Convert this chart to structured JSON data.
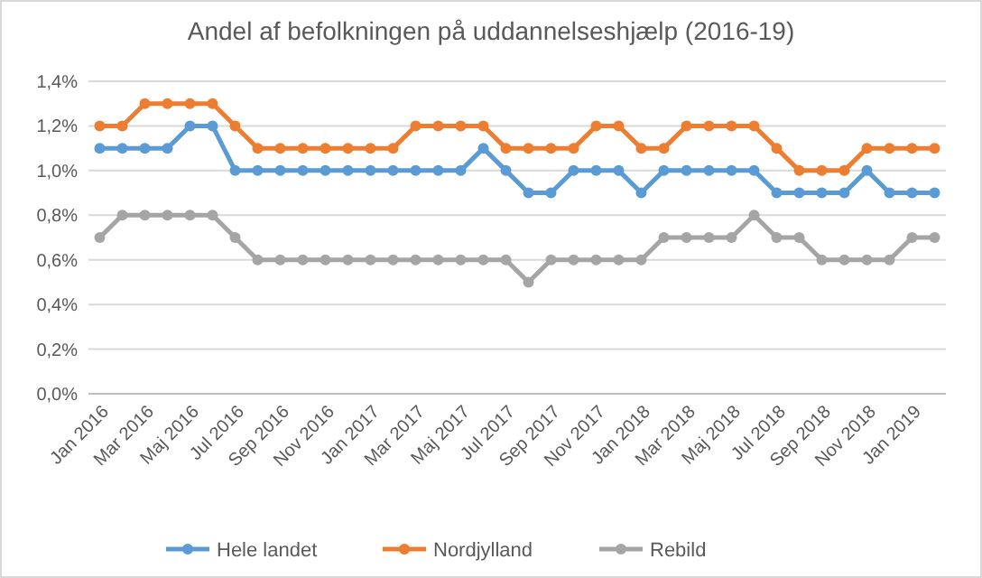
{
  "chart_data": {
    "type": "line",
    "title": "Andel af befolkningen på uddannelseshjælp (2016-19)",
    "categories": [
      "Jan 2016",
      null,
      "Mar 2016",
      null,
      "Maj 2016",
      null,
      "Jul 2016",
      null,
      "Sep 2016",
      null,
      "Nov 2016",
      null,
      "Jan 2017",
      null,
      "Mar 2017",
      null,
      "Maj 2017",
      null,
      "Jul 2017",
      null,
      "Sep 2017",
      null,
      "Nov 2017",
      null,
      "Jan 2018",
      null,
      "Mar 2018",
      null,
      "Maj 2018",
      null,
      "Jul 2018",
      null,
      "Sep 2018",
      null,
      "Nov 2018",
      null,
      "Jan 2019",
      null
    ],
    "series": [
      {
        "name": "Hele landet",
        "color": "#5b9bd5",
        "values": [
          1.1,
          1.1,
          1.1,
          1.1,
          1.2,
          1.2,
          1.0,
          1.0,
          1.0,
          1.0,
          1.0,
          1.0,
          1.0,
          1.0,
          1.0,
          1.0,
          1.0,
          1.1,
          1.0,
          0.9,
          0.9,
          1.0,
          1.0,
          1.0,
          0.9,
          1.0,
          1.0,
          1.0,
          1.0,
          1.0,
          0.9,
          0.9,
          0.9,
          0.9,
          1.0,
          0.9,
          0.9,
          0.9
        ]
      },
      {
        "name": "Nordjylland",
        "color": "#ed7d31",
        "values": [
          1.2,
          1.2,
          1.3,
          1.3,
          1.3,
          1.3,
          1.2,
          1.1,
          1.1,
          1.1,
          1.1,
          1.1,
          1.1,
          1.1,
          1.2,
          1.2,
          1.2,
          1.2,
          1.1,
          1.1,
          1.1,
          1.1,
          1.2,
          1.2,
          1.1,
          1.1,
          1.2,
          1.2,
          1.2,
          1.2,
          1.1,
          1.0,
          1.0,
          1.0,
          1.1,
          1.1,
          1.1,
          1.1
        ]
      },
      {
        "name": "Rebild",
        "color": "#a5a5a5",
        "values": [
          0.7,
          0.8,
          0.8,
          0.8,
          0.8,
          0.8,
          0.7,
          0.6,
          0.6,
          0.6,
          0.6,
          0.6,
          0.6,
          0.6,
          0.6,
          0.6,
          0.6,
          0.6,
          0.6,
          0.5,
          0.6,
          0.6,
          0.6,
          0.6,
          0.6,
          0.7,
          0.7,
          0.7,
          0.7,
          0.8,
          0.7,
          0.7,
          0.6,
          0.6,
          0.6,
          0.6,
          0.7,
          0.7
        ]
      }
    ],
    "ylim": [
      0,
      1.4
    ],
    "yticks": [
      {
        "value": 0,
        "label": "0,0%"
      },
      {
        "value": 0.2,
        "label": "0,2%"
      },
      {
        "value": 0.4,
        "label": "0,4%"
      },
      {
        "value": 0.6,
        "label": "0,6%"
      },
      {
        "value": 0.8,
        "label": "0,8%"
      },
      {
        "value": 1.0,
        "label": "1,0%"
      },
      {
        "value": 1.2,
        "label": "1,2%"
      },
      {
        "value": 1.4,
        "label": "1,4%"
      }
    ],
    "grid": "y",
    "legend": "bottom",
    "marker": "circle",
    "line_style": "solid"
  }
}
